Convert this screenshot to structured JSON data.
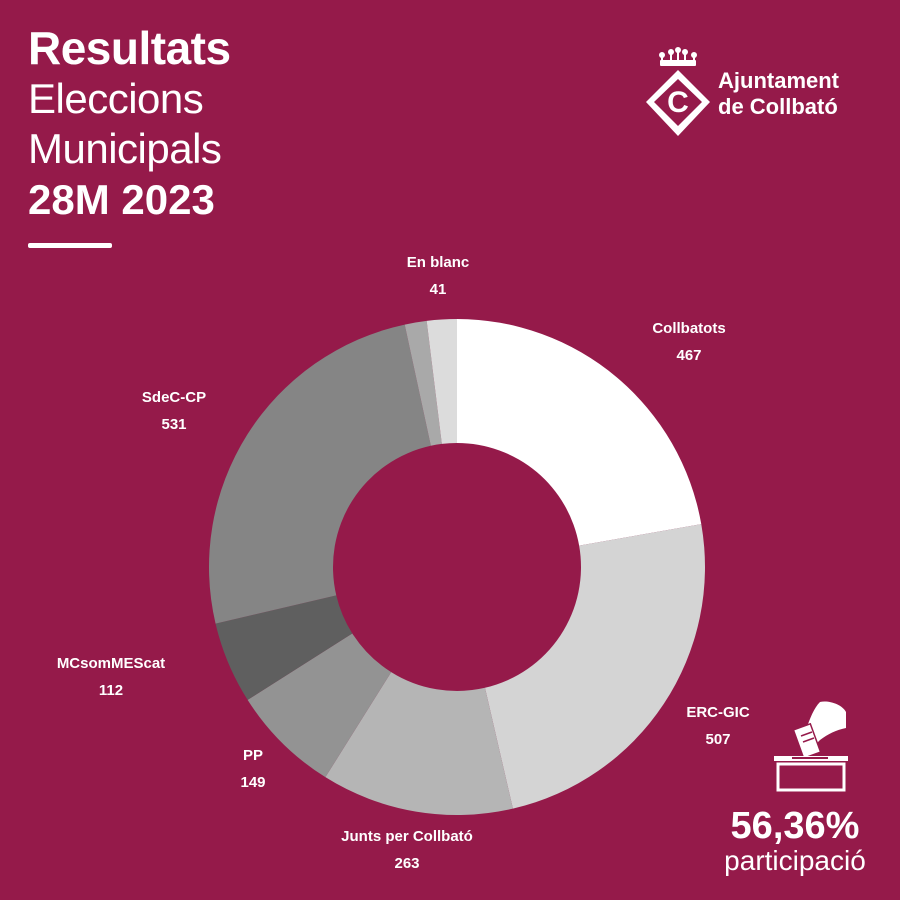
{
  "header": {
    "line1": "Resultats",
    "line2": "Eleccions",
    "line3": "Municipals",
    "line4": "28M 2023"
  },
  "logo": {
    "line1": "Ajuntament",
    "line2": "de Collbató",
    "emblem_letter": "C"
  },
  "participation": {
    "value": "56,36%",
    "label": "participació"
  },
  "colors": {
    "background": "#951a4a"
  },
  "chart_data": {
    "type": "pie",
    "variant": "donut",
    "title": "",
    "legend": "none",
    "slices": [
      {
        "label": "Collbatots",
        "value": 467,
        "color": "#ffffff"
      },
      {
        "label": "ERC-GIC",
        "value": 507,
        "color": "#d4d4d4"
      },
      {
        "label": "Junts per  Collbató",
        "value": 263,
        "color": "#b5b5b5"
      },
      {
        "label": "PP",
        "value": 149,
        "color": "#939393"
      },
      {
        "label": "MCsomMEScat",
        "value": 112,
        "color": "#5f5f5f"
      },
      {
        "label": "SdeC-CP",
        "value": 531,
        "color": "#858585"
      },
      {
        "label": "",
        "value": 30,
        "color": "#a9a9a9"
      },
      {
        "label": "En blanc",
        "value": 41,
        "color": "#dcdcdc"
      }
    ]
  }
}
